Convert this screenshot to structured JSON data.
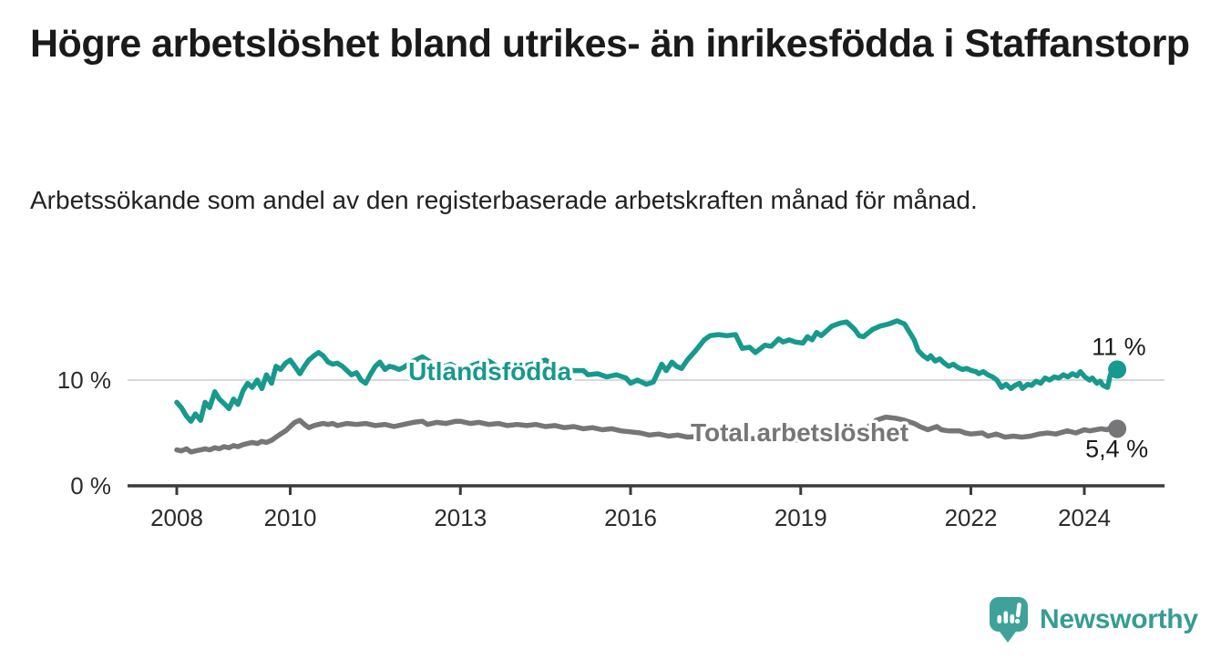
{
  "header": {
    "title": "Högre arbetslöshet bland utrikes- än inrikesfödda i Staffanstorp",
    "subtitle": "Arbetssökande som andel av den registerbaserade arbetskraften månad för månad."
  },
  "logo": {
    "text": "Newsworthy",
    "icon": "newsworthy-bubble-chart-icon",
    "color": "#3fa29a"
  },
  "colors": {
    "accent_teal": "#17998d",
    "neutral_gray": "#767678",
    "axis": "#3a3a3a",
    "grid": "#d9d9d9",
    "text": "#1a1a1a"
  },
  "chart_data": {
    "type": "line",
    "title": "Högre arbetslöshet bland utrikes- än inrikesfödda i Staffanstorp",
    "xlabel": "",
    "ylabel": "Arbetssökande som andel av den registerbaserade arbetskraften (%)",
    "grid": "horizontal-gridline-at-10-only",
    "legend_position": "inline-labels-on-lines",
    "x_range": [
      2008,
      2024.58
    ],
    "ylim": [
      0,
      16.5
    ],
    "x_axis": {
      "ticks": [
        {
          "value": 2008,
          "label": "2008"
        },
        {
          "value": 2010,
          "label": "2010"
        },
        {
          "value": 2013,
          "label": "2013"
        },
        {
          "value": 2016,
          "label": "2016"
        },
        {
          "value": 2019,
          "label": "2019"
        },
        {
          "value": 2022,
          "label": "2022"
        },
        {
          "value": 2024,
          "label": "2024"
        }
      ]
    },
    "y_axis": {
      "ticks": [
        {
          "value": 0,
          "label": "0 %"
        },
        {
          "value": 10,
          "label": "10 %"
        }
      ],
      "gridlines": [
        10
      ]
    },
    "series": [
      {
        "name": "Utlandsfödda",
        "color": "#17998d",
        "end_label": "11 %",
        "end_value": 11.0,
        "label_position": {
          "x": 2013.52,
          "y": 10.0
        },
        "points": [
          [
            2008.0,
            7.9
          ],
          [
            2008.08,
            7.4
          ],
          [
            2008.17,
            6.6
          ],
          [
            2008.25,
            6.1
          ],
          [
            2008.33,
            6.8
          ],
          [
            2008.42,
            6.2
          ],
          [
            2008.5,
            7.9
          ],
          [
            2008.58,
            7.4
          ],
          [
            2008.67,
            8.9
          ],
          [
            2008.75,
            8.2
          ],
          [
            2008.83,
            7.8
          ],
          [
            2008.92,
            7.3
          ],
          [
            2009.0,
            8.2
          ],
          [
            2009.08,
            7.7
          ],
          [
            2009.17,
            9.0
          ],
          [
            2009.25,
            9.7
          ],
          [
            2009.33,
            9.3
          ],
          [
            2009.42,
            10.0
          ],
          [
            2009.5,
            9.2
          ],
          [
            2009.58,
            10.5
          ],
          [
            2009.67,
            9.7
          ],
          [
            2009.75,
            11.3
          ],
          [
            2009.83,
            11.0
          ],
          [
            2009.92,
            11.6
          ],
          [
            2010.0,
            11.9
          ],
          [
            2010.08,
            11.3
          ],
          [
            2010.17,
            10.6
          ],
          [
            2010.25,
            11.3
          ],
          [
            2010.33,
            11.9
          ],
          [
            2010.42,
            12.3
          ],
          [
            2010.5,
            12.6
          ],
          [
            2010.58,
            12.3
          ],
          [
            2010.67,
            11.7
          ],
          [
            2010.75,
            11.5
          ],
          [
            2010.83,
            11.6
          ],
          [
            2010.92,
            11.3
          ],
          [
            2011.0,
            10.9
          ],
          [
            2011.08,
            10.5
          ],
          [
            2011.17,
            10.7
          ],
          [
            2011.25,
            10.0
          ],
          [
            2011.33,
            9.7
          ],
          [
            2011.42,
            10.6
          ],
          [
            2011.5,
            11.3
          ],
          [
            2011.58,
            11.7
          ],
          [
            2011.67,
            11.0
          ],
          [
            2011.75,
            11.3
          ],
          [
            2011.83,
            11.2
          ],
          [
            2011.92,
            11.0
          ],
          [
            2012.0,
            11.2
          ],
          [
            2012.17,
            11.8
          ],
          [
            2012.33,
            12.2
          ],
          [
            2012.5,
            11.6
          ],
          [
            2012.67,
            11.2
          ],
          [
            2012.83,
            11.5
          ],
          [
            2013.0,
            11.0
          ],
          [
            2013.17,
            11.3
          ],
          [
            2013.33,
            11.6
          ],
          [
            2013.5,
            11.8
          ],
          [
            2013.67,
            11.2
          ],
          [
            2013.83,
            10.9
          ],
          [
            2014.0,
            11.1
          ],
          [
            2014.17,
            11.4
          ],
          [
            2014.33,
            11.6
          ],
          [
            2014.5,
            11.9
          ],
          [
            2014.67,
            11.3
          ],
          [
            2014.83,
            11.0
          ],
          [
            2015.0,
            10.9
          ],
          [
            2015.17,
            10.9
          ],
          [
            2015.25,
            10.5
          ],
          [
            2015.42,
            10.6
          ],
          [
            2015.58,
            10.3
          ],
          [
            2015.75,
            10.5
          ],
          [
            2015.92,
            10.2
          ],
          [
            2016.0,
            9.7
          ],
          [
            2016.12,
            10.0
          ],
          [
            2016.28,
            9.6
          ],
          [
            2016.4,
            9.8
          ],
          [
            2016.55,
            11.5
          ],
          [
            2016.63,
            10.9
          ],
          [
            2016.73,
            11.7
          ],
          [
            2016.81,
            11.3
          ],
          [
            2016.9,
            11.1
          ],
          [
            2017.0,
            11.9
          ],
          [
            2017.15,
            12.8
          ],
          [
            2017.3,
            13.8
          ],
          [
            2017.4,
            14.2
          ],
          [
            2017.55,
            14.3
          ],
          [
            2017.7,
            14.2
          ],
          [
            2017.85,
            14.3
          ],
          [
            2017.97,
            13.0
          ],
          [
            2018.1,
            13.1
          ],
          [
            2018.2,
            12.6
          ],
          [
            2018.37,
            13.3
          ],
          [
            2018.48,
            13.2
          ],
          [
            2018.61,
            13.9
          ],
          [
            2018.69,
            13.6
          ],
          [
            2018.8,
            13.8
          ],
          [
            2018.9,
            13.6
          ],
          [
            2019.04,
            13.5
          ],
          [
            2019.12,
            14.1
          ],
          [
            2019.2,
            13.8
          ],
          [
            2019.28,
            14.5
          ],
          [
            2019.36,
            14.2
          ],
          [
            2019.55,
            15.1
          ],
          [
            2019.7,
            15.4
          ],
          [
            2019.81,
            15.5
          ],
          [
            2019.95,
            14.8
          ],
          [
            2020.03,
            14.2
          ],
          [
            2020.11,
            14.1
          ],
          [
            2020.27,
            14.8
          ],
          [
            2020.4,
            15.1
          ],
          [
            2020.55,
            15.3
          ],
          [
            2020.7,
            15.6
          ],
          [
            2020.83,
            15.3
          ],
          [
            2020.91,
            14.6
          ],
          [
            2021.0,
            13.8
          ],
          [
            2021.07,
            12.8
          ],
          [
            2021.16,
            12.3
          ],
          [
            2021.24,
            12.0
          ],
          [
            2021.29,
            12.3
          ],
          [
            2021.37,
            11.8
          ],
          [
            2021.45,
            12.0
          ],
          [
            2021.53,
            11.6
          ],
          [
            2021.61,
            11.3
          ],
          [
            2021.69,
            11.5
          ],
          [
            2021.77,
            11.2
          ],
          [
            2021.85,
            11.0
          ],
          [
            2021.93,
            11.1
          ],
          [
            2022.01,
            10.9
          ],
          [
            2022.09,
            10.8
          ],
          [
            2022.14,
            10.6
          ],
          [
            2022.22,
            10.8
          ],
          [
            2022.3,
            10.5
          ],
          [
            2022.38,
            10.3
          ],
          [
            2022.46,
            10.0
          ],
          [
            2022.54,
            9.3
          ],
          [
            2022.62,
            9.6
          ],
          [
            2022.7,
            9.2
          ],
          [
            2022.78,
            9.5
          ],
          [
            2022.86,
            9.7
          ],
          [
            2022.91,
            9.2
          ],
          [
            2023.0,
            9.6
          ],
          [
            2023.07,
            9.5
          ],
          [
            2023.15,
            9.9
          ],
          [
            2023.23,
            9.7
          ],
          [
            2023.31,
            10.2
          ],
          [
            2023.39,
            10.0
          ],
          [
            2023.47,
            10.3
          ],
          [
            2023.55,
            10.2
          ],
          [
            2023.63,
            10.5
          ],
          [
            2023.71,
            10.3
          ],
          [
            2023.79,
            10.6
          ],
          [
            2023.87,
            10.4
          ],
          [
            2023.93,
            10.8
          ],
          [
            2024.01,
            10.3
          ],
          [
            2024.09,
            10.0
          ],
          [
            2024.14,
            10.2
          ],
          [
            2024.22,
            9.7
          ],
          [
            2024.28,
            9.9
          ],
          [
            2024.33,
            9.5
          ],
          [
            2024.41,
            9.3
          ],
          [
            2024.46,
            10.5
          ],
          [
            2024.58,
            11.0
          ]
        ]
      },
      {
        "name": "Total arbetslöshet",
        "color": "#767678",
        "end_label": "5,4 %",
        "end_value": 5.4,
        "label_position": {
          "x": 2018.98,
          "y": 4.22
        },
        "points": [
          [
            2008.0,
            3.4
          ],
          [
            2008.08,
            3.3
          ],
          [
            2008.17,
            3.5
          ],
          [
            2008.25,
            3.2
          ],
          [
            2008.33,
            3.3
          ],
          [
            2008.42,
            3.4
          ],
          [
            2008.5,
            3.5
          ],
          [
            2008.58,
            3.4
          ],
          [
            2008.67,
            3.6
          ],
          [
            2008.75,
            3.5
          ],
          [
            2008.83,
            3.7
          ],
          [
            2008.92,
            3.6
          ],
          [
            2009.0,
            3.8
          ],
          [
            2009.08,
            3.7
          ],
          [
            2009.17,
            3.9
          ],
          [
            2009.25,
            4.0
          ],
          [
            2009.33,
            4.1
          ],
          [
            2009.42,
            4.0
          ],
          [
            2009.5,
            4.2
          ],
          [
            2009.58,
            4.1
          ],
          [
            2009.67,
            4.3
          ],
          [
            2009.75,
            4.6
          ],
          [
            2009.83,
            4.9
          ],
          [
            2009.92,
            5.2
          ],
          [
            2010.0,
            5.6
          ],
          [
            2010.08,
            6.0
          ],
          [
            2010.17,
            6.2
          ],
          [
            2010.25,
            5.8
          ],
          [
            2010.33,
            5.5
          ],
          [
            2010.42,
            5.7
          ],
          [
            2010.5,
            5.8
          ],
          [
            2010.58,
            5.9
          ],
          [
            2010.67,
            5.8
          ],
          [
            2010.75,
            5.9
          ],
          [
            2010.83,
            5.7
          ],
          [
            2010.92,
            5.8
          ],
          [
            2011.0,
            5.9
          ],
          [
            2011.17,
            5.8
          ],
          [
            2011.33,
            5.9
          ],
          [
            2011.5,
            5.7
          ],
          [
            2011.67,
            5.8
          ],
          [
            2011.83,
            5.6
          ],
          [
            2012.0,
            5.8
          ],
          [
            2012.17,
            6.0
          ],
          [
            2012.33,
            6.1
          ],
          [
            2012.42,
            5.8
          ],
          [
            2012.58,
            6.0
          ],
          [
            2012.75,
            5.9
          ],
          [
            2012.92,
            6.1
          ],
          [
            2013.0,
            6.1
          ],
          [
            2013.17,
            5.9
          ],
          [
            2013.33,
            6.0
          ],
          [
            2013.5,
            5.8
          ],
          [
            2013.67,
            5.9
          ],
          [
            2013.83,
            5.7
          ],
          [
            2014.0,
            5.8
          ],
          [
            2014.17,
            5.7
          ],
          [
            2014.33,
            5.8
          ],
          [
            2014.5,
            5.6
          ],
          [
            2014.67,
            5.7
          ],
          [
            2014.83,
            5.5
          ],
          [
            2015.0,
            5.6
          ],
          [
            2015.17,
            5.4
          ],
          [
            2015.33,
            5.5
          ],
          [
            2015.5,
            5.3
          ],
          [
            2015.67,
            5.4
          ],
          [
            2015.83,
            5.2
          ],
          [
            2016.0,
            5.1
          ],
          [
            2016.17,
            5.0
          ],
          [
            2016.33,
            4.8
          ],
          [
            2016.5,
            4.9
          ],
          [
            2016.67,
            4.7
          ],
          [
            2016.83,
            4.8
          ],
          [
            2017.0,
            4.6
          ],
          [
            2017.25,
            4.7
          ],
          [
            2017.5,
            4.5
          ],
          [
            2017.75,
            4.6
          ],
          [
            2018.0,
            4.4
          ],
          [
            2018.25,
            4.5
          ],
          [
            2018.5,
            4.3
          ],
          [
            2018.75,
            4.4
          ],
          [
            2019.0,
            4.3
          ],
          [
            2019.25,
            4.4
          ],
          [
            2019.5,
            4.5
          ],
          [
            2019.75,
            4.6
          ],
          [
            2020.0,
            4.9
          ],
          [
            2020.17,
            5.5
          ],
          [
            2020.33,
            6.2
          ],
          [
            2020.5,
            6.5
          ],
          [
            2020.67,
            6.4
          ],
          [
            2020.83,
            6.2
          ],
          [
            2021.0,
            5.9
          ],
          [
            2021.1,
            5.6
          ],
          [
            2021.24,
            5.3
          ],
          [
            2021.4,
            5.6
          ],
          [
            2021.48,
            5.3
          ],
          [
            2021.6,
            5.2
          ],
          [
            2021.8,
            5.2
          ],
          [
            2021.9,
            5.0
          ],
          [
            2022.0,
            4.9
          ],
          [
            2022.2,
            5.0
          ],
          [
            2022.3,
            4.7
          ],
          [
            2022.45,
            4.9
          ],
          [
            2022.6,
            4.6
          ],
          [
            2022.75,
            4.7
          ],
          [
            2022.9,
            4.6
          ],
          [
            2023.05,
            4.7
          ],
          [
            2023.2,
            4.9
          ],
          [
            2023.35,
            5.0
          ],
          [
            2023.5,
            4.9
          ],
          [
            2023.7,
            5.2
          ],
          [
            2023.85,
            5.0
          ],
          [
            2024.0,
            5.3
          ],
          [
            2024.1,
            5.2
          ],
          [
            2024.2,
            5.3
          ],
          [
            2024.3,
            5.4
          ],
          [
            2024.4,
            5.3
          ],
          [
            2024.5,
            5.6
          ],
          [
            2024.58,
            5.4
          ]
        ]
      }
    ]
  }
}
